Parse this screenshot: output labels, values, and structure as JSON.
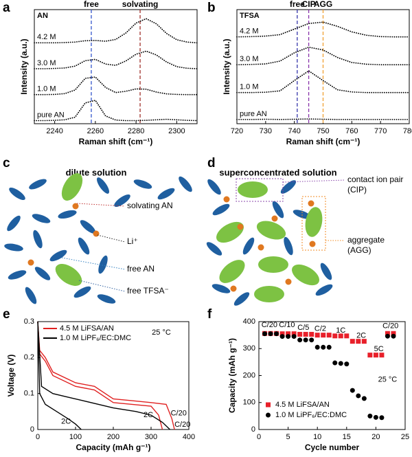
{
  "panel_labels": [
    "a",
    "b",
    "c",
    "d",
    "e",
    "f"
  ],
  "chart_data": [
    {
      "type": "line",
      "annotation": "AN",
      "xlabel": "Raman shift (cm⁻¹)",
      "ylabel": "Intensity (a.u.)",
      "xlim": [
        2230,
        2310
      ],
      "xticks": [
        2240,
        2260,
        2280,
        2300
      ],
      "ylim": [
        -0.1,
        4.3
      ],
      "x": [
        2230,
        2235,
        2240,
        2245,
        2250,
        2255,
        2260,
        2265,
        2270,
        2275,
        2280,
        2285,
        2290,
        2295,
        2300,
        2305,
        2310
      ],
      "series": [
        {
          "name": "4.2 M",
          "color": "#000000",
          "values": [
            3.02,
            3.02,
            3.02,
            3.03,
            3.05,
            3.1,
            3.11,
            3.08,
            3.15,
            3.4,
            3.78,
            3.95,
            3.75,
            3.38,
            3.14,
            3.05,
            3.02
          ]
        },
        {
          "name": "3.0 M",
          "color": "#000000",
          "values": [
            2.02,
            2.02,
            2.03,
            2.05,
            2.12,
            2.33,
            2.38,
            2.2,
            2.15,
            2.32,
            2.58,
            2.7,
            2.55,
            2.28,
            2.1,
            2.04,
            2.02
          ]
        },
        {
          "name": "1.0 M",
          "color": "#000000",
          "values": [
            1.02,
            1.02,
            1.03,
            1.06,
            1.2,
            1.65,
            1.7,
            1.3,
            1.1,
            1.15,
            1.24,
            1.23,
            1.12,
            1.05,
            1.03,
            1.02,
            1.02
          ]
        },
        {
          "name": "pure AN",
          "color": "#000000",
          "values": [
            0.02,
            0.02,
            0.03,
            0.05,
            0.15,
            0.7,
            0.8,
            0.2,
            0.04,
            0.02,
            0.02,
            0.03,
            0.05,
            0.07,
            0.05,
            0.03,
            0.02
          ]
        }
      ],
      "reference_lines": [
        {
          "label": "free",
          "x": 2258,
          "color": "#3355cc"
        },
        {
          "label": "solvating",
          "x": 2282,
          "color": "#a0302a"
        }
      ]
    },
    {
      "type": "line",
      "annotation": "TFSA",
      "xlabel": "Raman shift (cm⁻¹)",
      "ylabel": "Intensity (a.u.)",
      "xlim": [
        720,
        780
      ],
      "xticks": [
        720,
        730,
        740,
        750,
        760,
        770,
        780
      ],
      "ylim": [
        -0.1,
        4.0
      ],
      "x": [
        720,
        725,
        730,
        735,
        740,
        745,
        750,
        755,
        760,
        765,
        770,
        775,
        780
      ],
      "series": [
        {
          "name": "4.2 M",
          "color": "#000000",
          "values": [
            3.02,
            3.03,
            3.05,
            3.1,
            3.3,
            3.5,
            3.55,
            3.4,
            3.2,
            3.08,
            3.03,
            3.02,
            3.02
          ]
        },
        {
          "name": "3.0 M",
          "color": "#000000",
          "values": [
            2.02,
            2.03,
            2.05,
            2.15,
            2.45,
            2.65,
            2.55,
            2.28,
            2.1,
            2.04,
            2.02,
            2.02,
            2.02
          ]
        },
        {
          "name": "1.0 M",
          "color": "#000000",
          "values": [
            1.02,
            1.02,
            1.03,
            1.08,
            1.45,
            1.8,
            1.45,
            1.12,
            1.04,
            1.02,
            1.02,
            1.02,
            1.02
          ]
        },
        {
          "name": "pure AN",
          "color": "#000000",
          "values": [
            0.05,
            0.05,
            0.06,
            0.05,
            0.06,
            0.07,
            0.06,
            0.05,
            0.05,
            0.05,
            0.05,
            0.05,
            0.05
          ]
        }
      ],
      "reference_lines": [
        {
          "label": "free",
          "x": 741,
          "color": "#3333aa"
        },
        {
          "label": "CIP",
          "x": 745,
          "color": "#8833aa"
        },
        {
          "label": "AGG",
          "x": 750,
          "color": "#f0a030"
        }
      ]
    },
    {
      "type": "curves",
      "xlabel": "Capacity (mAh g⁻¹)",
      "ylabel": "Voltage (V)",
      "condition": "25 °C",
      "xlim": [
        0,
        400
      ],
      "xticks": [
        0,
        100,
        200,
        300,
        400
      ],
      "ylim": [
        0,
        0.3
      ],
      "yticks": [
        0,
        0.1,
        0.2,
        0.3
      ],
      "series": [
        {
          "name": "4.5 M LiFSA/AN",
          "color": "#e02020",
          "curves": [
            {
              "label": "C/20",
              "x": [
                0,
                5,
                20,
                40,
                100,
                150,
                200,
                250,
                300,
                340,
                355,
                362
              ],
              "values": [
                0.3,
                0.22,
                0.2,
                0.16,
                0.13,
                0.12,
                0.085,
                0.08,
                0.075,
                0.07,
                0.03,
                0
              ]
            },
            {
              "label": "2C",
              "x": [
                0,
                5,
                20,
                40,
                100,
                150,
                200,
                250,
                300,
                320,
                330
              ],
              "values": [
                0.3,
                0.21,
                0.19,
                0.15,
                0.12,
                0.11,
                0.075,
                0.07,
                0.065,
                0.04,
                0
              ]
            }
          ]
        },
        {
          "name": "1.0 M LiPF₆/EC:DMC",
          "color": "#000000",
          "curves": [
            {
              "label": "C/20",
              "x": [
                0,
                10,
                40,
                80,
                120,
                200,
                260,
                300,
                330,
                350
              ],
              "values": [
                0.3,
                0.12,
                0.1,
                0.09,
                0.08,
                0.06,
                0.05,
                0.04,
                0.02,
                0
              ]
            },
            {
              "label": "2C",
              "x": [
                0,
                5,
                20,
                50,
                80,
                100,
                115
              ],
              "values": [
                0.3,
                0.1,
                0.07,
                0.05,
                0.03,
                0.015,
                0
              ]
            }
          ]
        }
      ]
    },
    {
      "type": "scatter",
      "xlabel": "Cycle number",
      "ylabel": "Capacity (mAh g⁻¹)",
      "condition": "25 °C",
      "xlim": [
        0,
        25
      ],
      "xticks": [
        0,
        5,
        10,
        15,
        20,
        25
      ],
      "ylim": [
        0,
        400
      ],
      "yticks": [
        0,
        100,
        200,
        300,
        400
      ],
      "rate_labels": [
        "C/20",
        "C/10",
        "C/5",
        "C/2",
        "1C",
        "2C",
        "5C",
        "C/20"
      ],
      "x": [
        1,
        2,
        3,
        4,
        5,
        6,
        7,
        8,
        9,
        10,
        11,
        12,
        13,
        14,
        15,
        16,
        17,
        18,
        19,
        20,
        21,
        22,
        23
      ],
      "series": [
        {
          "name": "4.5 M LiFSA/AN",
          "color": "#e8202a",
          "marker": "square",
          "values": [
            356,
            356,
            356,
            355,
            355,
            355,
            353,
            353,
            353,
            350,
            350,
            350,
            347,
            347,
            347,
            327,
            327,
            327,
            276,
            276,
            276,
            356,
            356
          ]
        },
        {
          "name": "1.0 M LiPF₆/EC:DMC",
          "color": "#000000",
          "marker": "circle",
          "values": [
            355,
            355,
            355,
            345,
            345,
            345,
            332,
            332,
            332,
            305,
            305,
            305,
            247,
            245,
            243,
            145,
            125,
            115,
            50,
            45,
            44,
            346,
            346
          ]
        }
      ]
    }
  ],
  "diagrams": [
    {
      "title": "dilute solution",
      "labels": [
        [
          "solvating AN"
        ],
        [
          "Li⁺"
        ],
        [
          "free AN"
        ],
        [
          "free TFSA⁻"
        ]
      ]
    },
    {
      "title": "superconcentrated solution",
      "labels": [
        [
          "contact ion pair",
          "(CIP)"
        ],
        [
          "aggregate",
          "(AGG)"
        ]
      ]
    }
  ]
}
